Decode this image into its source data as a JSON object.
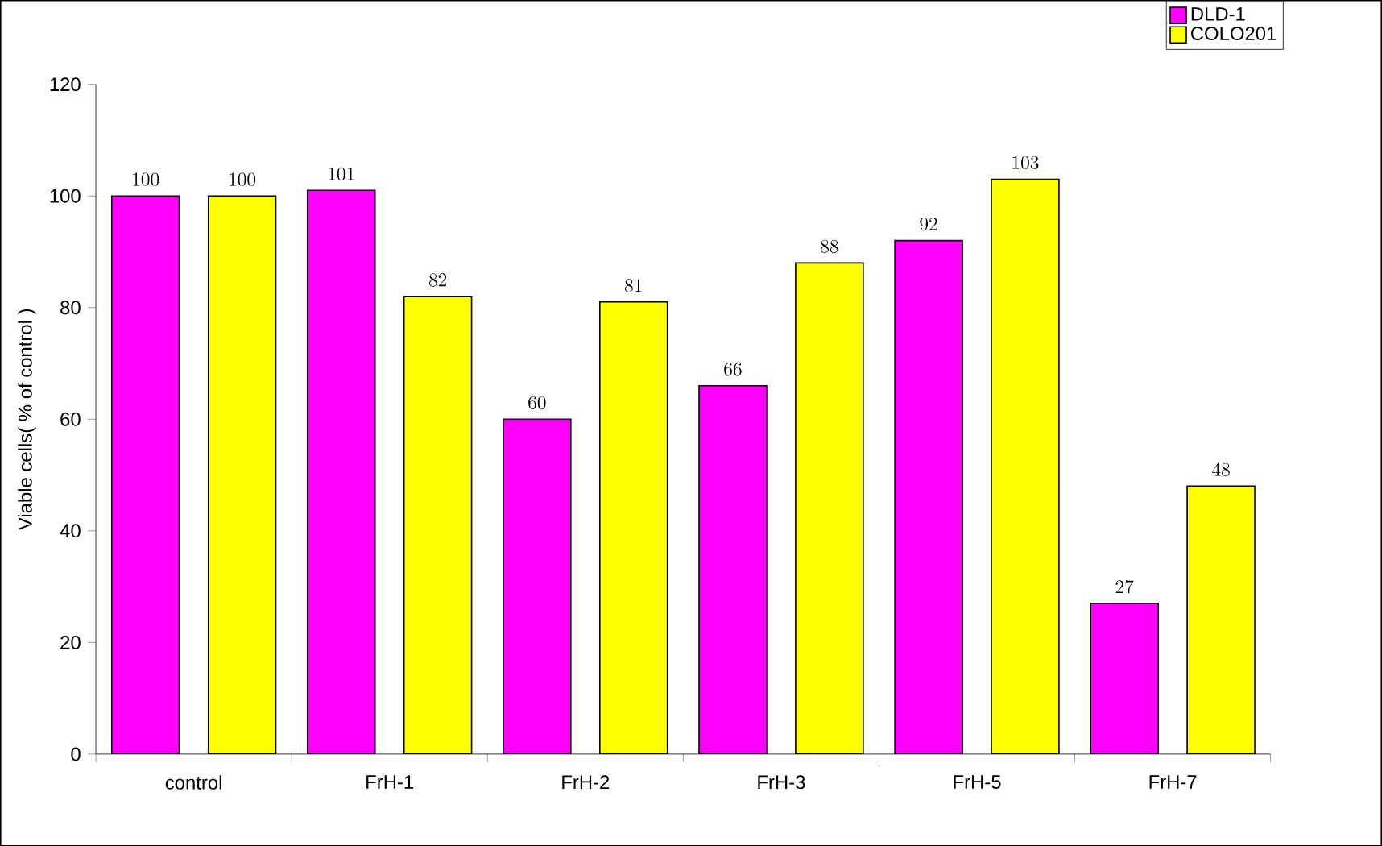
{
  "chart_data": {
    "type": "bar",
    "ylabel": "Viable cells( % of control )",
    "categories": [
      "control",
      "FrH-1",
      "FrH-2",
      "FrH-3",
      "FrH-5",
      "FrH-7"
    ],
    "series": [
      {
        "name": "DLD-1",
        "color": "#ff00ff",
        "values": [
          100,
          101,
          60,
          66,
          92,
          27
        ]
      },
      {
        "name": "COLO201",
        "color": "#ffff00",
        "values": [
          100,
          82,
          81,
          88,
          103,
          48
        ]
      }
    ],
    "ylim": [
      0,
      120
    ],
    "yticks": [
      0,
      20,
      40,
      60,
      80,
      100,
      120
    ],
    "data_labels": true,
    "grid": false,
    "legend": "top right"
  }
}
